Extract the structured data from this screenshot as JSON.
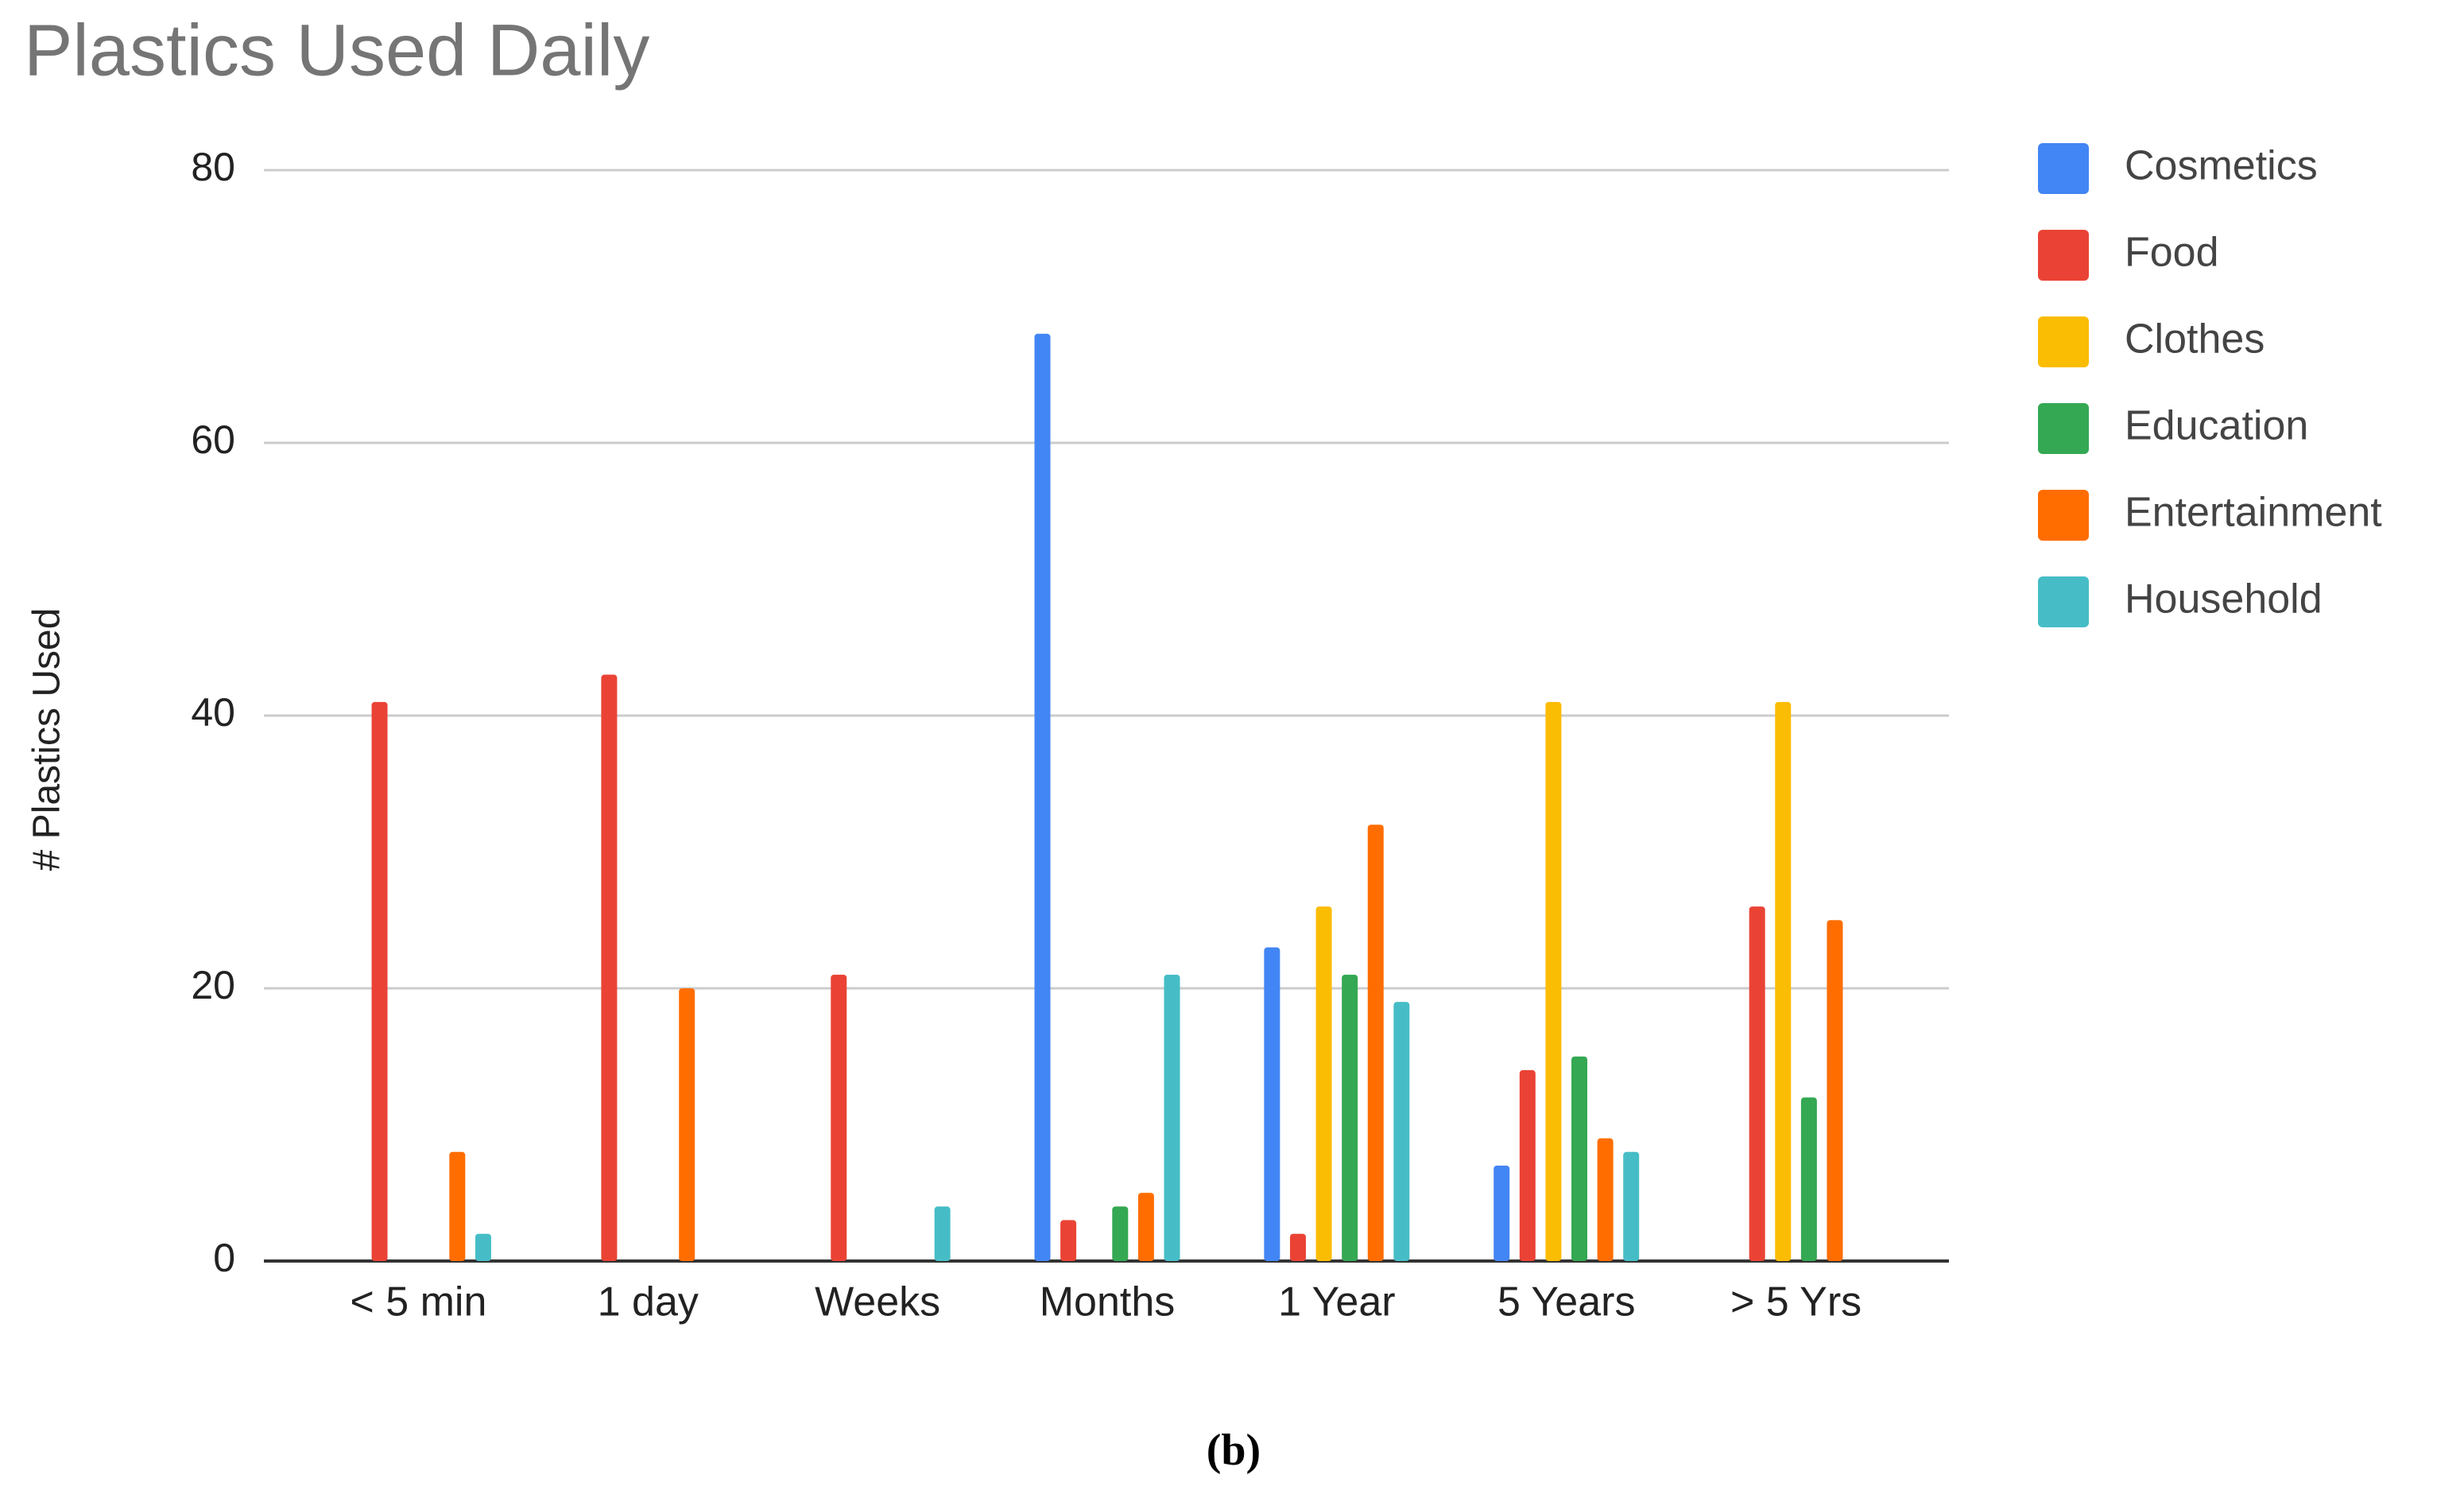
{
  "chart_data": {
    "type": "bar",
    "title": "Plastics Used Daily",
    "ylabel": "# Plastics Used",
    "caption": "(b)",
    "categories": [
      "< 5 min",
      "1 day",
      "Weeks",
      "Months",
      "1 Year",
      "5 Years",
      "> 5 Yrs"
    ],
    "series": [
      {
        "name": "Cosmetics",
        "color": "#4285f4",
        "values": [
          0,
          0,
          0,
          68,
          23,
          7,
          0
        ]
      },
      {
        "name": "Food",
        "color": "#ea4335",
        "values": [
          41,
          43,
          21,
          3,
          2,
          14,
          26
        ]
      },
      {
        "name": "Clothes",
        "color": "#fbbc04",
        "values": [
          0,
          0,
          0,
          0,
          26,
          41,
          41
        ]
      },
      {
        "name": "Education",
        "color": "#34a853",
        "values": [
          0,
          0,
          0,
          4,
          21,
          15,
          12
        ]
      },
      {
        "name": "Entertainment",
        "color": "#ff6d01",
        "values": [
          8,
          20,
          0,
          5,
          32,
          9,
          25
        ]
      },
      {
        "name": "Household",
        "color": "#46bdc6",
        "values": [
          2,
          0,
          4,
          21,
          19,
          8,
          0
        ]
      }
    ],
    "ylim": [
      0,
      80
    ],
    "yticks": [
      0,
      20,
      40,
      60,
      80
    ],
    "grid": true,
    "legend": "right"
  }
}
